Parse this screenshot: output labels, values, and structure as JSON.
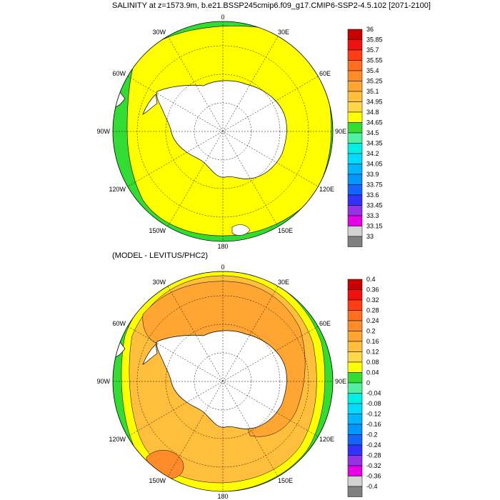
{
  "top_panel": {
    "title": "SALINITY at z=1573.9m, b.e21.BSSP245cmip6.f09_g17.CMIP6-SSP2-4.5.102 [2071-2100]",
    "colorbar": {
      "levels": [
        "36",
        "35.85",
        "35.7",
        "35.55",
        "35.4",
        "35.25",
        "35.1",
        "34.95",
        "34.8",
        "34.65",
        "34.5",
        "34.35",
        "34.2",
        "34.05",
        "33.9",
        "33.75",
        "33.6",
        "33.45",
        "33.3",
        "33.15",
        "33"
      ],
      "colors": [
        "#c80000",
        "#f01010",
        "#ff3c14",
        "#ff6e1e",
        "#ff8c28",
        "#ffa532",
        "#ffbe3c",
        "#ffd746",
        "#ffff00",
        "#32dc32",
        "#50f0a0",
        "#00f0e6",
        "#00dcff",
        "#00b4ff",
        "#0096ff",
        "#1464ff",
        "#3232ff",
        "#9632e6",
        "#e600e6",
        "#d2d2d2",
        "#808080"
      ]
    },
    "longitude_labels": [
      "0",
      "30E",
      "60E",
      "90E",
      "120E",
      "150E",
      "180",
      "150W",
      "120W",
      "90W",
      "60W",
      "30W"
    ]
  },
  "bottom_panel": {
    "title": "(MODEL - LEVITUS/PHC2)",
    "colorbar": {
      "levels": [
        "0.4",
        "0.36",
        "0.32",
        "0.28",
        "0.24",
        "0.2",
        "0.16",
        "0.12",
        "0.08",
        "0.04",
        "0",
        "-0.04",
        "-0.08",
        "-0.12",
        "-0.16",
        "-0.2",
        "-0.24",
        "-0.28",
        "-0.32",
        "-0.36",
        "-0.4"
      ],
      "colors": [
        "#c80000",
        "#f01010",
        "#ff3c14",
        "#ff6e1e",
        "#ff8c28",
        "#ffa532",
        "#ffbe3c",
        "#ffd746",
        "#ffff00",
        "#32dc32",
        "#50f0a0",
        "#00f0e6",
        "#00dcff",
        "#00b4ff",
        "#0096ff",
        "#1464ff",
        "#3232ff",
        "#9632e6",
        "#e600e6",
        "#d2d2d2",
        "#808080"
      ]
    },
    "longitude_labels": [
      "0",
      "30E",
      "60E",
      "90E",
      "120E",
      "150E",
      "180",
      "150W",
      "120W",
      "90W",
      "60W",
      "30W"
    ]
  },
  "colors": {
    "land": "#ffffff",
    "yellow_field": "#ffff00",
    "green_band": "#32dc32",
    "orange_field": "#ffbe3c",
    "dark_orange": "#ffa532",
    "coast": "#000000"
  }
}
